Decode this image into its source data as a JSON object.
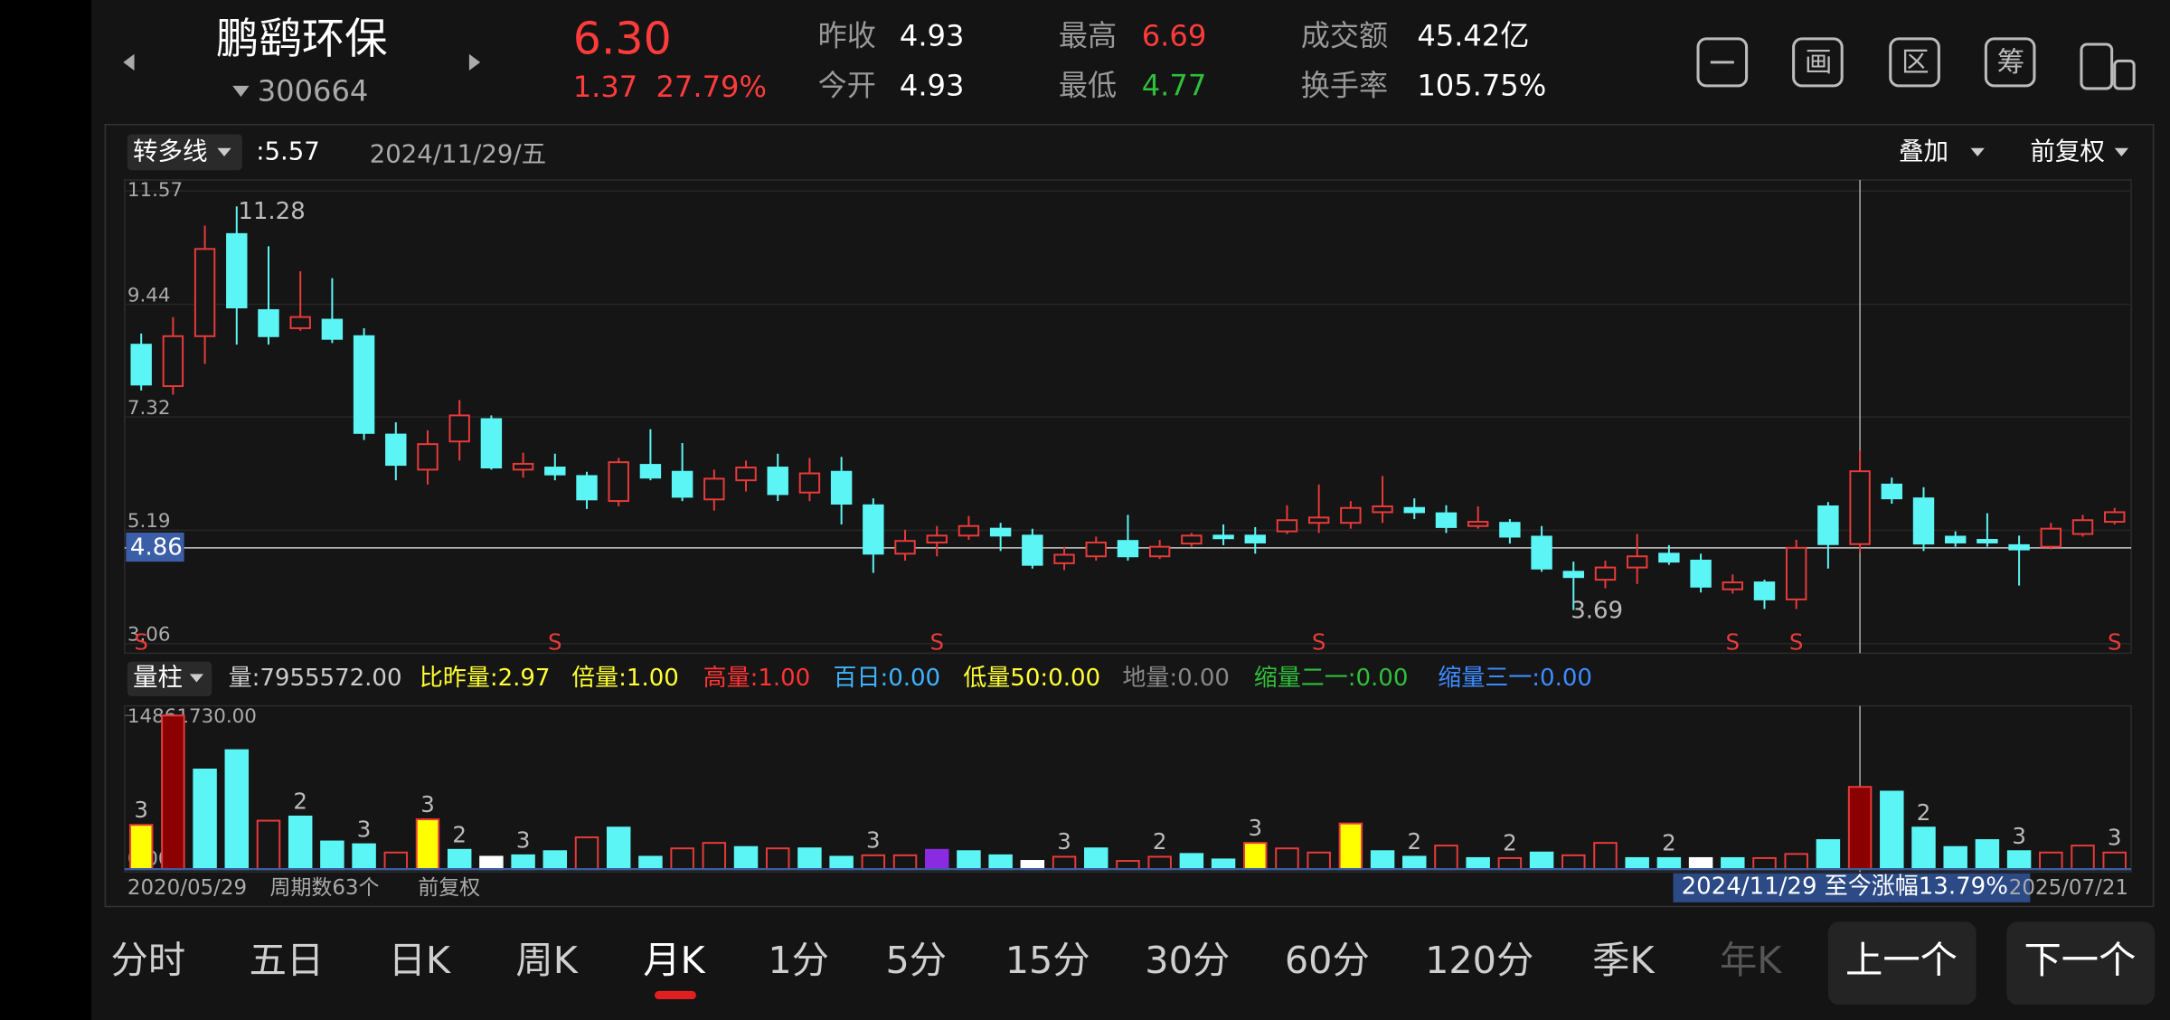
{
  "header": {
    "name": "鹏鹞环保",
    "code": "300664",
    "price": "6.30",
    "change": "1.37",
    "change_pct": "27.79%",
    "stats": [
      {
        "label": "昨收",
        "value": "4.93",
        "color": "#ffffff"
      },
      {
        "label": "今开",
        "value": "4.93",
        "color": "#ffffff"
      },
      {
        "label": "最高",
        "value": "6.69",
        "color": "#ff3b3b"
      },
      {
        "label": "最低",
        "value": "4.77",
        "color": "#2fbf3a"
      },
      {
        "label": "成交额",
        "value": "45.42亿",
        "color": "#ffffff"
      },
      {
        "label": "换手率",
        "value": "105.75%",
        "color": "#ffffff"
      }
    ],
    "tools": [
      "画",
      "区",
      "筹"
    ]
  },
  "toolbar": {
    "indicator": "转多线",
    "indicator_value": ":5.57",
    "date": "2024/11/29/五",
    "overlay": "叠加",
    "adjust": "前复权"
  },
  "volume_bar": {
    "selector": "量柱",
    "items": [
      {
        "label": "量:",
        "value": "7955572.00",
        "color": "#cccccc"
      },
      {
        "label": "比昨量:",
        "value": "2.97",
        "color": "#ffff33"
      },
      {
        "label": "倍量:",
        "value": "1.00",
        "color": "#ffff33"
      },
      {
        "label": "高量:",
        "value": "1.00",
        "color": "#ff3333"
      },
      {
        "label": "百日:",
        "value": "0.00",
        "color": "#3db5ff"
      },
      {
        "label": "低量50:",
        "value": "0.00",
        "color": "#ffff33"
      },
      {
        "label": "地量:",
        "value": "0.00",
        "color": "#888888"
      },
      {
        "label": "缩量二一:",
        "value": "0.00",
        "color": "#2fbf3a"
      },
      {
        "label": "缩量三一:",
        "value": "0.00",
        "color": "#3d8bff"
      }
    ]
  },
  "footer": {
    "periods": "周期数63个",
    "adjust": "前复权",
    "range": "2024/11/29 至今涨幅13.79%"
  },
  "tabs": [
    {
      "label": "分时",
      "state": "normal"
    },
    {
      "label": "五日",
      "state": "normal"
    },
    {
      "label": "日K",
      "state": "normal"
    },
    {
      "label": "周K",
      "state": "normal"
    },
    {
      "label": "月K",
      "state": "active"
    },
    {
      "label": "1分",
      "state": "normal"
    },
    {
      "label": "5分",
      "state": "normal"
    },
    {
      "label": "15分",
      "state": "normal"
    },
    {
      "label": "30分",
      "state": "normal"
    },
    {
      "label": "60分",
      "state": "normal"
    },
    {
      "label": "120分",
      "state": "normal"
    },
    {
      "label": "季K",
      "state": "normal"
    },
    {
      "label": "年K",
      "state": "dim"
    }
  ],
  "buttons": [
    "上一个",
    "下一个"
  ],
  "chart_data": [
    {
      "type": "candlestick",
      "up_color": "#e83a3a",
      "down_color": "#5cf5f5",
      "grid": true,
      "ylim": [
        3.06,
        11.57
      ],
      "yticks": [
        11.57,
        9.44,
        7.32,
        5.19,
        3.06
      ],
      "cursor_price": 4.86,
      "open": [
        8.68,
        7.9,
        8.84,
        10.76,
        9.33,
        8.99,
        9.15,
        8.84,
        6.99,
        6.33,
        6.86,
        7.28,
        6.33,
        6.37,
        6.21,
        5.74,
        6.42,
        6.29,
        5.77,
        6.13,
        6.37,
        5.9,
        6.29,
        5.66,
        4.75,
        4.96,
        5.09,
        5.22,
        5.09,
        4.57,
        4.7,
        4.99,
        4.7,
        4.94,
        5.09,
        5.09,
        5.17,
        5.33,
        5.33,
        5.53,
        5.61,
        5.51,
        5.27,
        5.33,
        5.07,
        4.41,
        4.26,
        4.49,
        4.75,
        4.62,
        4.08,
        4.21,
        3.89,
        5.64,
        4.93,
        6.05,
        5.79,
        5.07,
        5.01,
        4.91,
        4.88,
        5.12,
        5.35
      ],
      "close": [
        7.93,
        8.84,
        10.48,
        9.38,
        8.84,
        9.2,
        8.79,
        7.02,
        6.42,
        6.81,
        7.35,
        6.37,
        6.44,
        6.24,
        5.77,
        6.47,
        6.18,
        5.82,
        6.16,
        6.37,
        5.87,
        6.26,
        5.69,
        4.75,
        4.99,
        5.09,
        5.27,
        5.09,
        4.54,
        4.73,
        4.96,
        4.7,
        4.88,
        5.09,
        5.04,
        4.96,
        5.38,
        5.43,
        5.61,
        5.64,
        5.53,
        5.25,
        5.35,
        5.07,
        4.47,
        4.31,
        4.49,
        4.7,
        4.6,
        4.13,
        4.21,
        3.89,
        4.86,
        4.93,
        6.3,
        5.79,
        4.94,
        4.96,
        4.96,
        4.83,
        5.22,
        5.38,
        5.53
      ],
      "high": [
        8.89,
        9.2,
        10.92,
        11.28,
        10.53,
        10.06,
        9.93,
        8.99,
        7.22,
        7.07,
        7.64,
        7.35,
        6.65,
        6.63,
        6.29,
        6.55,
        7.09,
        6.83,
        6.33,
        6.5,
        6.63,
        6.55,
        6.57,
        5.79,
        5.2,
        5.27,
        5.46,
        5.33,
        5.22,
        4.88,
        5.07,
        5.48,
        5.01,
        5.14,
        5.3,
        5.25,
        5.66,
        6.05,
        5.74,
        6.21,
        5.79,
        5.66,
        5.64,
        5.4,
        5.27,
        4.6,
        4.62,
        5.12,
        4.91,
        4.75,
        4.36,
        4.26,
        5.01,
        5.72,
        6.69,
        6.18,
        6.0,
        5.17,
        5.51,
        5.09,
        5.33,
        5.48,
        5.61
      ],
      "low": [
        7.82,
        7.74,
        8.32,
        8.68,
        8.68,
        8.94,
        8.71,
        6.89,
        6.13,
        6.05,
        6.5,
        6.33,
        6.18,
        6.13,
        5.59,
        5.64,
        6.13,
        5.74,
        5.56,
        5.92,
        5.74,
        5.74,
        5.3,
        4.39,
        4.62,
        4.7,
        5.01,
        4.8,
        4.47,
        4.44,
        4.62,
        4.62,
        4.65,
        4.88,
        4.91,
        4.75,
        5.12,
        5.14,
        5.22,
        5.33,
        5.4,
        5.14,
        5.22,
        4.94,
        4.41,
        3.69,
        4.1,
        4.18,
        4.54,
        4.02,
        4.0,
        3.71,
        3.71,
        4.47,
        4.77,
        5.69,
        4.8,
        4.88,
        4.88,
        4.15,
        4.83,
        5.07,
        5.3
      ],
      "signals": [
        "S",
        null,
        null,
        null,
        null,
        null,
        null,
        null,
        null,
        null,
        null,
        null,
        null,
        "S",
        null,
        null,
        null,
        null,
        null,
        null,
        null,
        null,
        null,
        null,
        null,
        "S",
        null,
        null,
        null,
        null,
        null,
        null,
        null,
        null,
        null,
        null,
        null,
        "S",
        null,
        null,
        null,
        null,
        null,
        null,
        null,
        null,
        null,
        null,
        null,
        null,
        "S",
        null,
        "S",
        null,
        null,
        null,
        null,
        null,
        null,
        null,
        null,
        null,
        "S"
      ]
    },
    {
      "type": "bar",
      "categories": [
        "2020/05/29",
        null,
        null,
        null,
        null,
        null,
        null,
        null,
        null,
        null,
        null,
        null,
        null,
        null,
        null,
        null,
        null,
        null,
        null,
        null,
        null,
        null,
        null,
        null,
        null,
        null,
        null,
        null,
        null,
        null,
        null,
        null,
        null,
        null,
        null,
        null,
        null,
        null,
        null,
        null,
        null,
        null,
        null,
        null,
        null,
        null,
        null,
        null,
        null,
        null,
        null,
        null,
        null,
        null,
        null,
        null,
        null,
        null,
        null,
        null,
        null,
        null,
        "2025/07/21"
      ],
      "ylim": [
        0,
        14861730
      ],
      "yticks": [
        {
          "value": 14861730,
          "label": "14861730.00"
        },
        {
          "value": 0,
          "label": "0.00"
        }
      ],
      "values": [
        4280000,
        14861730,
        9640000,
        11510000,
        4690000,
        5090000,
        2680000,
        2410000,
        1610000,
        4820000,
        1870000,
        1200000,
        1340000,
        1740000,
        3080000,
        4020000,
        1200000,
        2010000,
        2540000,
        2140000,
        2010000,
        2010000,
        1200000,
        1340000,
        1340000,
        1870000,
        1740000,
        1340000,
        800000,
        1200000,
        2010000,
        800000,
        1200000,
        1470000,
        940000,
        2540000,
        2010000,
        1610000,
        4420000,
        1740000,
        1200000,
        2280000,
        1070000,
        1070000,
        1610000,
        1340000,
        2540000,
        1070000,
        1070000,
        1070000,
        1070000,
        1070000,
        1470000,
        2810000,
        7955572,
        7500000,
        4020000,
        2140000,
        2810000,
        1740000,
        1610000,
        2280000,
        1610000
      ],
      "colors": [
        "#ffff00",
        "#8b0000",
        "#5cf5f5",
        "#5cf5f5",
        "#e83a3a",
        "#5cf5f5",
        "#5cf5f5",
        "#5cf5f5",
        "#e83a3a",
        "#ffff00",
        "#5cf5f5",
        "#ffffff",
        "#5cf5f5",
        "#5cf5f5",
        "#e83a3a",
        "#5cf5f5",
        "#5cf5f5",
        "#e83a3a",
        "#e83a3a",
        "#5cf5f5",
        "#e83a3a",
        "#5cf5f5",
        "#5cf5f5",
        "#e83a3a",
        "#e83a3a",
        "#8a2be2",
        "#5cf5f5",
        "#5cf5f5",
        "#ffffff",
        "#e83a3a",
        "#5cf5f5",
        "#e83a3a",
        "#e83a3a",
        "#5cf5f5",
        "#5cf5f5",
        "#ffff00",
        "#e83a3a",
        "#e83a3a",
        "#ffff00",
        "#5cf5f5",
        "#5cf5f5",
        "#e83a3a",
        "#5cf5f5",
        "#e83a3a",
        "#5cf5f5",
        "#e83a3a",
        "#e83a3a",
        "#5cf5f5",
        "#5cf5f5",
        "#ffffff",
        "#5cf5f5",
        "#e83a3a",
        "#e83a3a",
        "#5cf5f5",
        "#8b0000",
        "#5cf5f5",
        "#5cf5f5",
        "#5cf5f5",
        "#5cf5f5",
        "#5cf5f5",
        "#e83a3a",
        "#e83a3a",
        "#e83a3a"
      ],
      "marks": [
        "3",
        null,
        null,
        null,
        null,
        "2",
        null,
        "3",
        null,
        "3",
        "2",
        null,
        "3",
        null,
        null,
        null,
        null,
        null,
        null,
        null,
        null,
        null,
        null,
        "3",
        null,
        null,
        null,
        null,
        null,
        "3",
        null,
        null,
        "2",
        null,
        null,
        "3",
        null,
        null,
        null,
        null,
        "2",
        null,
        null,
        "2",
        null,
        null,
        null,
        null,
        "2",
        null,
        null,
        null,
        null,
        null,
        null,
        null,
        "2",
        null,
        null,
        "3",
        null,
        null,
        "3"
      ]
    }
  ]
}
